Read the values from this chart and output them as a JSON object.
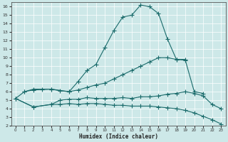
{
  "xlabel": "Humidex (Indice chaleur)",
  "bg_color": "#cde8e8",
  "grid_color": "#ffffff",
  "line_color": "#1a6b6b",
  "xlim": [
    -0.5,
    23.5
  ],
  "ylim": [
    2,
    16.5
  ],
  "xticks": [
    0,
    1,
    2,
    3,
    4,
    5,
    6,
    7,
    8,
    9,
    10,
    11,
    12,
    13,
    14,
    15,
    16,
    17,
    18,
    19,
    20,
    21,
    22,
    23
  ],
  "yticks": [
    2,
    3,
    4,
    5,
    6,
    7,
    8,
    9,
    10,
    11,
    12,
    13,
    14,
    15,
    16
  ],
  "line1_x": [
    1,
    2,
    3,
    4,
    6,
    7,
    8,
    9,
    10,
    11,
    12,
    13,
    14,
    15,
    16,
    17,
    18,
    19
  ],
  "line1_y": [
    6.0,
    6.3,
    6.3,
    6.3,
    6.0,
    7.2,
    8.5,
    9.2,
    11.2,
    13.2,
    14.8,
    15.0,
    16.2,
    16.0,
    15.2,
    12.2,
    9.8,
    9.8
  ],
  "line2_x": [
    0,
    1,
    2,
    4,
    5,
    6,
    7,
    8,
    9,
    10,
    11,
    12,
    13,
    14,
    15,
    16,
    17,
    18,
    19,
    20,
    21
  ],
  "line2_y": [
    5.2,
    6.0,
    6.2,
    6.3,
    6.1,
    6.0,
    6.2,
    6.5,
    6.8,
    7.0,
    7.5,
    8.0,
    8.5,
    9.0,
    9.5,
    10.0,
    10.0,
    9.8,
    9.7,
    6.0,
    5.8
  ],
  "line3_x": [
    0,
    2,
    4,
    5,
    6,
    7,
    8,
    9,
    10,
    11,
    12,
    13,
    14,
    15,
    16,
    17,
    18,
    19,
    20,
    21,
    22,
    23
  ],
  "line3_y": [
    5.2,
    4.2,
    4.5,
    5.0,
    5.1,
    5.1,
    5.3,
    5.2,
    5.2,
    5.2,
    5.3,
    5.2,
    5.4,
    5.4,
    5.5,
    5.7,
    5.8,
    6.0,
    5.8,
    5.5,
    4.5,
    4.0
  ],
  "line4_x": [
    0,
    2,
    4,
    5,
    6,
    7,
    8,
    9,
    10,
    11,
    12,
    13,
    14,
    15,
    16,
    17,
    18,
    19,
    20,
    21,
    22,
    23
  ],
  "line4_y": [
    5.2,
    4.2,
    4.5,
    4.5,
    4.6,
    4.5,
    4.6,
    4.6,
    4.5,
    4.4,
    4.4,
    4.3,
    4.3,
    4.3,
    4.2,
    4.1,
    4.0,
    3.8,
    3.5,
    3.1,
    2.7,
    2.2
  ]
}
